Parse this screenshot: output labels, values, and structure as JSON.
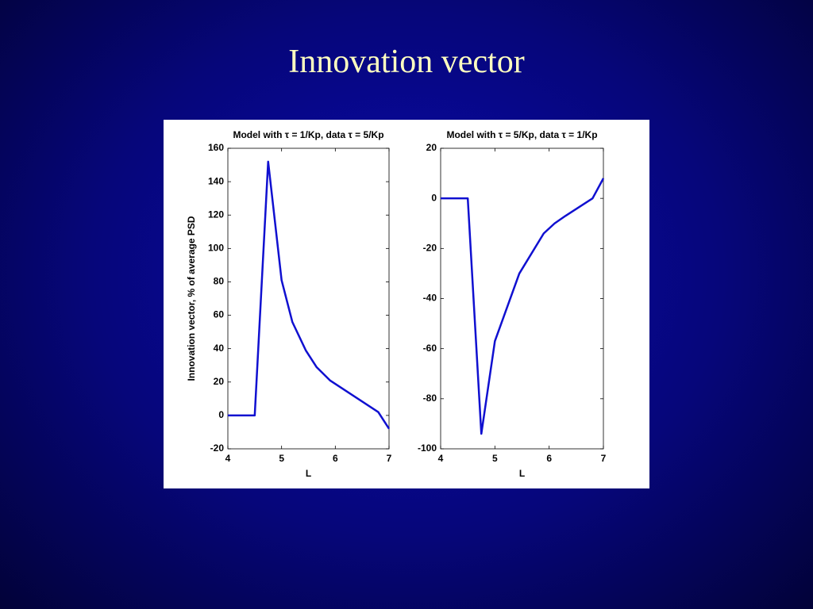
{
  "title": "Innovation vector",
  "chart_data": [
    {
      "type": "line",
      "title": "Model with τ = 1/Kp, data τ = 5/Kp",
      "x_label": "L",
      "y_label": "Innovation vector, % of average PSD",
      "x": [
        4,
        4.5,
        4.75,
        5,
        5.2,
        5.45,
        5.65,
        5.9,
        6.8,
        7
      ],
      "series": [
        {
          "name": "Innovation vector",
          "color": "#1010d0",
          "values": [
            0,
            0,
            152,
            81,
            56,
            39,
            29,
            21,
            2,
            -8
          ]
        }
      ],
      "xlim": [
        4,
        7
      ],
      "xticks": [
        4,
        5,
        6,
        7
      ],
      "ylim": [
        -20,
        160
      ],
      "yticks": [
        -20,
        0,
        20,
        40,
        60,
        80,
        100,
        120,
        140,
        160
      ]
    },
    {
      "type": "line",
      "title": "Model with τ = 5/Kp, data τ = 1/Kp",
      "x_label": "L",
      "x": [
        4,
        4.5,
        4.75,
        5,
        5.45,
        5.9,
        6.1,
        6.3,
        6.8,
        7
      ],
      "series": [
        {
          "name": "Innovation vector",
          "color": "#1010d0",
          "values": [
            0,
            0,
            -94,
            -57,
            -30,
            -14,
            -10,
            -7,
            0,
            8
          ]
        }
      ],
      "xlim": [
        4,
        7
      ],
      "xticks": [
        4,
        5,
        6,
        7
      ],
      "ylim": [
        -100,
        20
      ],
      "yticks": [
        -100,
        -80,
        -60,
        -40,
        -20,
        0,
        20
      ]
    }
  ]
}
